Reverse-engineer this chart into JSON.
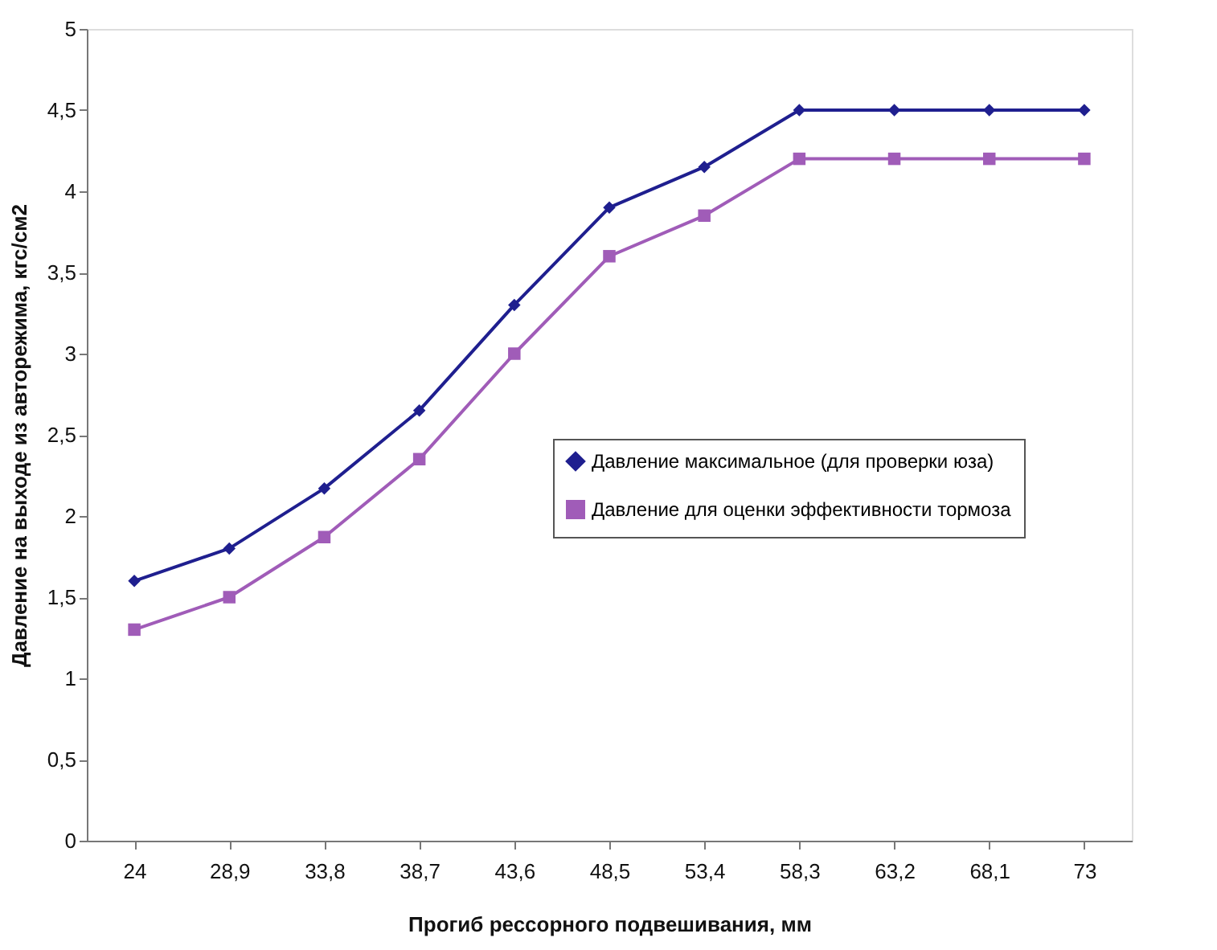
{
  "chart_data": {
    "type": "line",
    "xlabel": "Прогиб рессорного подвешивания, мм",
    "ylabel": "Давление на выходе из авторежима, кгс/см2",
    "categories": [
      "24",
      "28,9",
      "33,8",
      "38,7",
      "43,6",
      "48,5",
      "53,4",
      "58,3",
      "63,2",
      "68,1",
      "73"
    ],
    "series": [
      {
        "name": "Давление максимальное (для проверки юза)",
        "color": "#1f1f8f",
        "marker": "diamond",
        "values": [
          1.6,
          1.8,
          2.17,
          2.65,
          3.3,
          3.9,
          4.15,
          4.5,
          4.5,
          4.5,
          4.5
        ]
      },
      {
        "name": "Давление для оценки эффективности тормоза",
        "color": "#a05cb8",
        "marker": "square",
        "values": [
          1.3,
          1.5,
          1.87,
          2.35,
          3.0,
          3.6,
          3.85,
          4.2,
          4.2,
          4.2,
          4.2
        ]
      }
    ],
    "ylim": [
      0,
      5
    ],
    "yticks": [
      0,
      {
        "value": 0.5,
        "label": "0,5"
      },
      1,
      {
        "value": 1.5,
        "label": "1,5"
      },
      2,
      {
        "value": 2.5,
        "label": "2,5"
      },
      3,
      {
        "value": 3.5,
        "label": "3,5"
      },
      4,
      {
        "value": 4.5,
        "label": "4,5"
      },
      5
    ],
    "grid": false,
    "legend": "right",
    "line_style": "solid"
  }
}
